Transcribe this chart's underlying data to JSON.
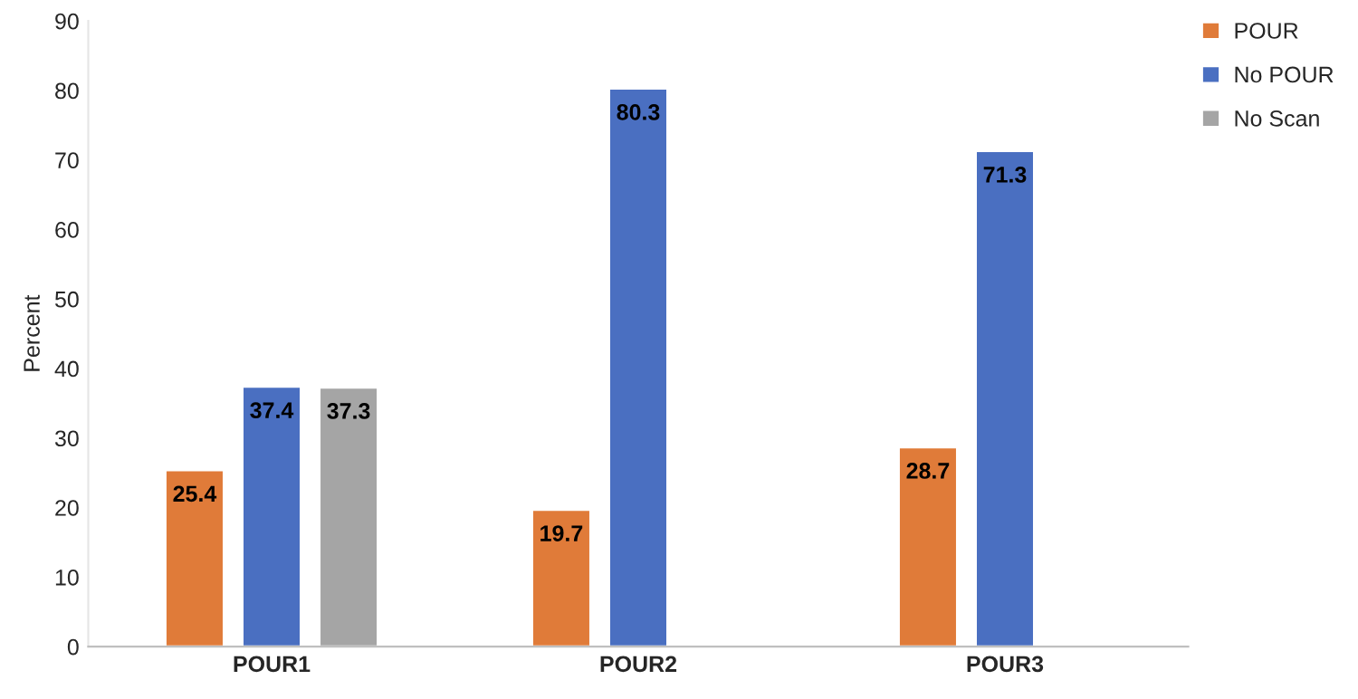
{
  "chart_data": {
    "type": "bar",
    "ylabel": "Percent",
    "categories": [
      "POUR1",
      "POUR2",
      "POUR3"
    ],
    "series": [
      {
        "name": "POUR",
        "color": "#e07b39",
        "values": [
          25.4,
          19.7,
          28.7
        ]
      },
      {
        "name": "No POUR",
        "color": "#4a6fc1",
        "values": [
          37.4,
          80.3,
          71.3
        ]
      },
      {
        "name": "No Scan",
        "color": "#a5a5a5",
        "values": [
          37.3,
          null,
          null
        ]
      }
    ],
    "ylim": [
      0,
      90
    ],
    "yticks": [
      0,
      10,
      20,
      30,
      40,
      50,
      60,
      70,
      80,
      90
    ],
    "data_labels": true,
    "grid": false,
    "legend": "top right"
  }
}
